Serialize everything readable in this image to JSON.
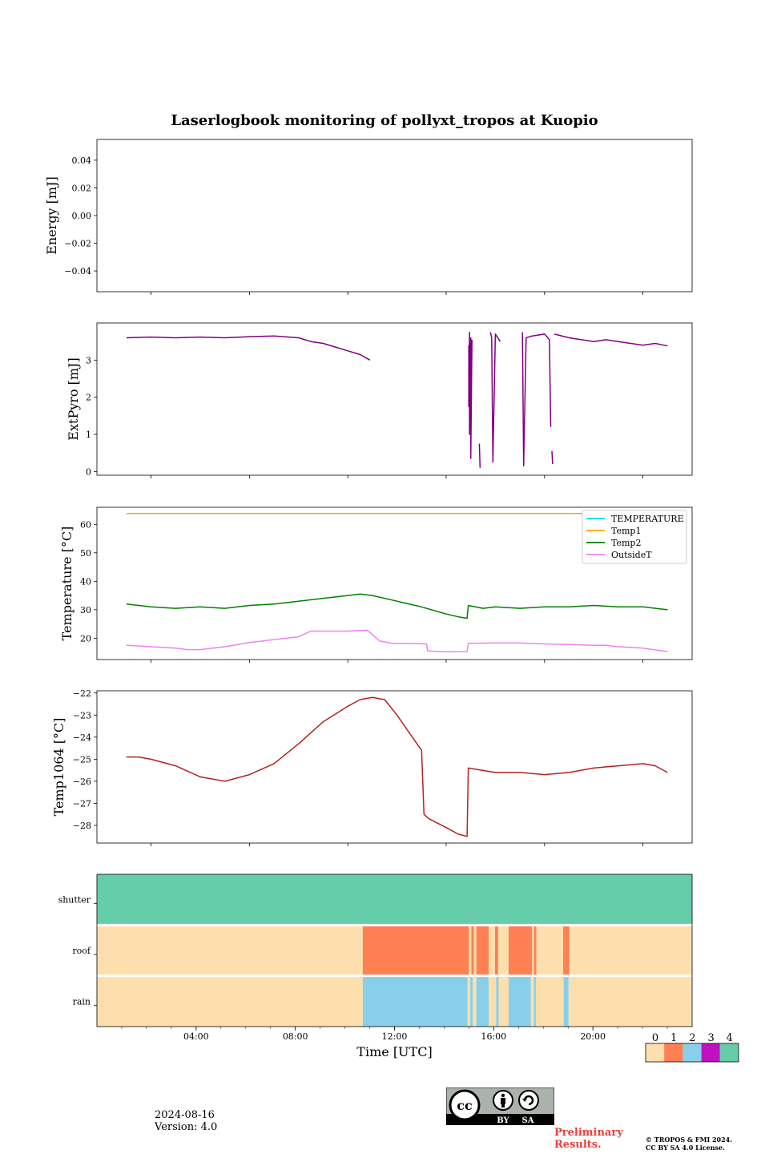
{
  "title": "Laserlogbook monitoring of pollyxt_tropos at Kuopio",
  "footer": {
    "date": "2024-08-16",
    "version": "Version: 4.0",
    "preliminary": [
      "Preliminary",
      "Results."
    ],
    "copyright": [
      "© TROPOS & FMI 2024.",
      "CC BY SA 4.0 License."
    ],
    "license_badge": [
      "BY",
      "SA"
    ],
    "license_icons": [
      "cc-icon",
      "person-icon",
      "share-alike-icon"
    ]
  },
  "chart_data": [
    {
      "type": "line",
      "ylabel": "Energy [mJ]",
      "ylim": [
        -0.055,
        0.055
      ],
      "yticks": [
        0.04,
        0.02,
        0.0,
        -0.02,
        -0.04
      ],
      "ytick_labels": [
        "0.04",
        "0.02",
        "0.00",
        "−0.02",
        "−0.04"
      ],
      "series": []
    },
    {
      "type": "line",
      "ylabel": "ExtPyro [mJ]",
      "ylim": [
        -0.1,
        4.0
      ],
      "yticks": [
        0,
        1,
        2,
        3
      ],
      "color": "#800080",
      "series": [
        {
          "x": [
            1.0,
            2.0,
            3.0,
            4.0,
            5.0,
            6.0,
            7.0,
            8.0,
            8.5,
            9.0,
            9.5,
            10.0,
            10.5,
            10.9
          ],
          "values": [
            3.6,
            3.62,
            3.6,
            3.62,
            3.6,
            3.63,
            3.65,
            3.6,
            3.5,
            3.45,
            3.35,
            3.25,
            3.15,
            3.0
          ]
        },
        {
          "x": [
            14.92,
            14.92,
            14.95,
            14.95,
            15.0,
            15.0,
            15.05
          ],
          "values": [
            3.4,
            1.75,
            3.75,
            1.0,
            3.6,
            0.35,
            3.55
          ]
        },
        {
          "x": [
            15.35,
            15.38
          ],
          "values": [
            0.75,
            0.1
          ]
        },
        {
          "x": [
            15.8,
            15.85,
            15.9,
            16.0,
            16.2
          ],
          "values": [
            3.75,
            3.6,
            0.25,
            3.7,
            3.5
          ]
        },
        {
          "x": [
            17.1,
            17.15,
            17.25,
            17.5,
            18.0,
            18.2,
            18.25
          ],
          "values": [
            3.75,
            0.15,
            3.6,
            3.65,
            3.7,
            3.55,
            1.2
          ]
        },
        {
          "x": [
            18.3,
            18.33
          ],
          "values": [
            0.55,
            0.2
          ]
        },
        {
          "x": [
            18.4,
            19.0,
            19.5,
            20.0,
            20.5,
            21.0,
            21.5,
            22.0,
            22.5,
            23.0
          ],
          "values": [
            3.7,
            3.6,
            3.55,
            3.5,
            3.55,
            3.5,
            3.45,
            3.4,
            3.45,
            3.38
          ]
        }
      ]
    },
    {
      "type": "line",
      "ylabel": "Temperature [°C]",
      "ylim": [
        12.5,
        66
      ],
      "yticks": [
        20,
        30,
        40,
        50,
        60
      ],
      "legend_position": "top-right",
      "series": [
        {
          "name": "TEMPERATURE",
          "color": "#00e5ee",
          "x": [],
          "values": []
        },
        {
          "name": "Temp1",
          "color": "#ffa500",
          "x": [
            1.0,
            23.0
          ],
          "values": [
            63.8,
            63.8
          ]
        },
        {
          "name": "Temp2",
          "color": "#008000",
          "x": [
            1.0,
            2.0,
            3.0,
            4.0,
            5.0,
            6.0,
            7.0,
            8.0,
            9.0,
            10.0,
            10.5,
            11.0,
            12.0,
            13.0,
            14.0,
            14.5,
            14.85,
            14.9,
            15.5,
            16.0,
            17.0,
            18.0,
            19.0,
            20.0,
            21.0,
            22.0,
            23.0
          ],
          "values": [
            32.0,
            31.0,
            30.5,
            31.0,
            30.5,
            31.5,
            32.0,
            33.0,
            34.0,
            35.0,
            35.5,
            35.0,
            33.0,
            31.0,
            28.5,
            27.5,
            27.0,
            31.5,
            30.5,
            31.0,
            30.5,
            31.0,
            31.0,
            31.5,
            31.0,
            31.0,
            30.0
          ]
        },
        {
          "name": "OutsideT",
          "color": "#ee82ee",
          "x": [
            1.0,
            2.0,
            3.0,
            3.5,
            4.0,
            5.0,
            6.0,
            7.0,
            7.5,
            8.0,
            8.5,
            9.0,
            10.0,
            10.8,
            11.3,
            11.8,
            12.5,
            13.2,
            13.25,
            14.0,
            14.85,
            14.9,
            16.0,
            17.0,
            18.0,
            19.0,
            20.0,
            20.5,
            21.0,
            22.0,
            23.0
          ],
          "values": [
            17.5,
            17.0,
            16.5,
            16.0,
            16.0,
            17.0,
            18.5,
            19.5,
            20.0,
            20.5,
            22.5,
            22.5,
            22.5,
            22.8,
            19.0,
            18.2,
            18.2,
            18.0,
            15.5,
            15.2,
            15.3,
            18.2,
            18.3,
            18.3,
            18.0,
            17.8,
            17.5,
            17.5,
            17.0,
            16.5,
            15.3
          ]
        }
      ]
    },
    {
      "type": "line",
      "ylabel": "Temp1064 [°C]",
      "ylim": [
        -28.8,
        -21.9
      ],
      "yticks": [
        -22,
        -23,
        -24,
        -25,
        -26,
        -27,
        -28
      ],
      "ytick_labels": [
        "−22",
        "−23",
        "−24",
        "−25",
        "−26",
        "−27",
        "−28"
      ],
      "color": "#b22222",
      "series": [
        {
          "x": [
            1.0,
            1.5,
            2.0,
            3.0,
            4.0,
            5.0,
            6.0,
            7.0,
            8.0,
            9.0,
            10.0,
            10.5,
            11.0,
            11.5,
            12.0,
            12.5,
            13.0,
            13.1,
            13.3,
            14.0,
            14.5,
            14.85,
            14.9,
            16.0,
            17.0,
            18.0,
            19.0,
            20.0,
            21.0,
            22.0,
            22.5,
            23.0
          ],
          "values": [
            -24.9,
            -24.9,
            -25.0,
            -25.3,
            -25.8,
            -26.0,
            -25.7,
            -25.2,
            -24.3,
            -23.3,
            -22.6,
            -22.3,
            -22.2,
            -22.3,
            -23.0,
            -23.8,
            -24.6,
            -27.5,
            -27.7,
            -28.1,
            -28.4,
            -28.5,
            -25.4,
            -25.6,
            -25.6,
            -25.7,
            -25.6,
            -25.4,
            -25.3,
            -25.2,
            -25.3,
            -25.6
          ]
        }
      ]
    },
    {
      "type": "heatmap",
      "xlabel": "Time [UTC]",
      "xlim": [
        0,
        24
      ],
      "xticks": [
        4,
        8,
        12,
        16,
        20
      ],
      "xtick_labels": [
        "04:00",
        "08:00",
        "12:00",
        "16:00",
        "20:00"
      ],
      "rows": [
        "shutter",
        "roof",
        "rain"
      ],
      "colorbar": {
        "ticks": [
          "0",
          "1",
          "2",
          "3",
          "4"
        ],
        "colors": [
          "#fddfad",
          "#ff8052",
          "#89cfea",
          "#c010c0",
          "#66cdaa"
        ]
      },
      "segments": {
        "shutter": [
          [
            0,
            24,
            4
          ]
        ],
        "roof": [
          [
            0,
            10.72,
            0
          ],
          [
            10.72,
            15.0,
            1
          ],
          [
            15.0,
            15.1,
            0
          ],
          [
            15.1,
            15.2,
            1
          ],
          [
            15.2,
            15.3,
            0
          ],
          [
            15.3,
            15.8,
            1
          ],
          [
            15.8,
            16.05,
            0
          ],
          [
            16.05,
            16.18,
            1
          ],
          [
            16.18,
            16.6,
            0
          ],
          [
            16.6,
            17.55,
            1
          ],
          [
            17.55,
            17.62,
            0
          ],
          [
            17.62,
            17.72,
            1
          ],
          [
            17.72,
            18.8,
            0
          ],
          [
            18.8,
            19.05,
            1
          ],
          [
            19.05,
            24,
            0
          ]
        ],
        "rain": [
          [
            0,
            10.72,
            0
          ],
          [
            10.72,
            14.95,
            2
          ],
          [
            14.95,
            15.05,
            0
          ],
          [
            15.05,
            15.15,
            2
          ],
          [
            15.15,
            15.3,
            0
          ],
          [
            15.3,
            15.8,
            2
          ],
          [
            15.8,
            16.1,
            0
          ],
          [
            16.1,
            16.2,
            2
          ],
          [
            16.2,
            16.6,
            0
          ],
          [
            16.6,
            17.5,
            2
          ],
          [
            17.5,
            17.62,
            0
          ],
          [
            17.62,
            17.7,
            2
          ],
          [
            17.7,
            18.82,
            0
          ],
          [
            18.82,
            19.02,
            2
          ],
          [
            19.02,
            24,
            0
          ]
        ]
      }
    }
  ]
}
